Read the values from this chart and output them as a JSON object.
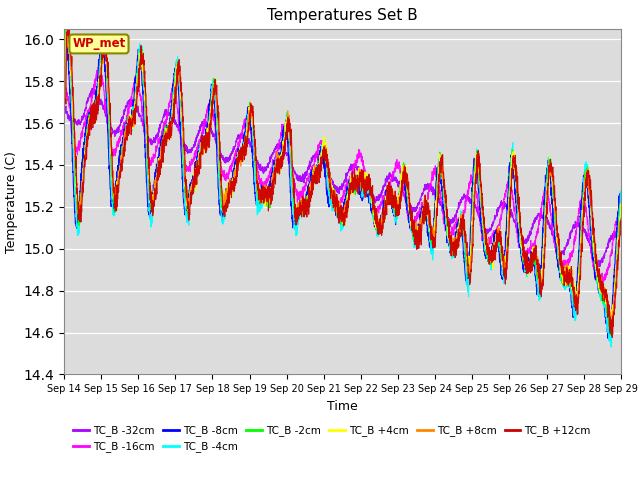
{
  "title": "Temperatures Set B",
  "xlabel": "Time",
  "ylabel": "Temperature (C)",
  "ylim": [
    14.4,
    16.05
  ],
  "background_color": "#dcdcdc",
  "series": [
    {
      "label": "TC_B -32cm",
      "color": "#aa00ff"
    },
    {
      "label": "TC_B -16cm",
      "color": "#ff00ff"
    },
    {
      "label": "TC_B -8cm",
      "color": "#0000ff"
    },
    {
      "label": "TC_B -4cm",
      "color": "#00ffff"
    },
    {
      "label": "TC_B -2cm",
      "color": "#00ff00"
    },
    {
      "label": "TC_B +4cm",
      "color": "#ffff00"
    },
    {
      "label": "TC_B +8cm",
      "color": "#ff8800"
    },
    {
      "label": "TC_B +12cm",
      "color": "#cc0000"
    }
  ],
  "xtick_labels": [
    "Sep 14",
    "Sep 15",
    "Sep 16",
    "Sep 17",
    "Sep 18",
    "Sep 19",
    "Sep 20",
    "Sep 21",
    "Sep 22",
    "Sep 23",
    "Sep 24",
    "Sep 25",
    "Sep 26",
    "Sep 27",
    "Sep 28",
    "Sep 29"
  ],
  "wp_met_box_color": "#ffff99",
  "wp_met_text_color": "#cc0000",
  "wp_met_edge_color": "#888800",
  "n_points": 3000
}
